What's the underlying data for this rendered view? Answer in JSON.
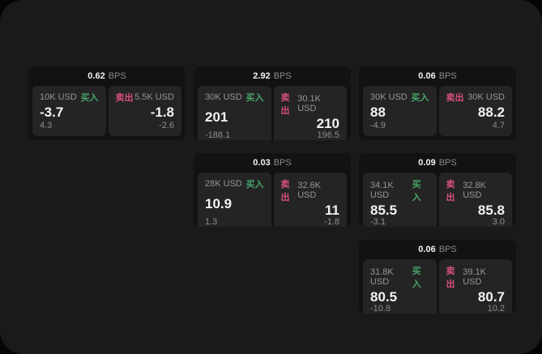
{
  "window": {
    "background": "#1a1a1a",
    "outer_background": "#050505"
  },
  "colors": {
    "buy_green": "#4aa56c",
    "sell_red": "#d65178",
    "card_bg": "#121212",
    "panel_bg": "#242424",
    "text_primary": "#f2f2f2",
    "text_secondary": "#969696"
  },
  "labels": {
    "bps_unit": "BPS",
    "buy": "买入",
    "sell": "卖出"
  },
  "cards": [
    {
      "col": 1,
      "row": 1,
      "bps": "0.62",
      "buy": {
        "amount": "10K USD",
        "value": "-3.7",
        "delta": "4.3"
      },
      "sell": {
        "amount": "5.5K USD",
        "value": "-1.8",
        "delta": "-2.6"
      }
    },
    {
      "col": 2,
      "row": 1,
      "bps": "2.92",
      "buy": {
        "amount": "30K USD",
        "value": "201",
        "delta": "-188.1"
      },
      "sell": {
        "amount": "30.1K USD",
        "value": "210",
        "delta": "196.5"
      }
    },
    {
      "col": 3,
      "row": 1,
      "bps": "0.06",
      "buy": {
        "amount": "30K USD",
        "value": "88",
        "delta": "-4.9"
      },
      "sell": {
        "amount": "30K USD",
        "value": "88.2",
        "delta": "4.7"
      }
    },
    {
      "col": 2,
      "row": 2,
      "bps": "0.03",
      "buy": {
        "amount": "28K USD",
        "value": "10.9",
        "delta": "1.3"
      },
      "sell": {
        "amount": "32.6K USD",
        "value": "11",
        "delta": "-1.8"
      }
    },
    {
      "col": 3,
      "row": 2,
      "bps": "0.09",
      "buy": {
        "amount": "34.1K USD",
        "value": "85.5",
        "delta": "-3.1"
      },
      "sell": {
        "amount": "32.8K USD",
        "value": "85.8",
        "delta": "3.0"
      }
    },
    {
      "col": 3,
      "row": 3,
      "bps": "0.06",
      "buy": {
        "amount": "31.8K USD",
        "value": "80.5",
        "delta": "-10.8"
      },
      "sell": {
        "amount": "39.1K USD",
        "value": "80.7",
        "delta": "10.2"
      }
    }
  ]
}
